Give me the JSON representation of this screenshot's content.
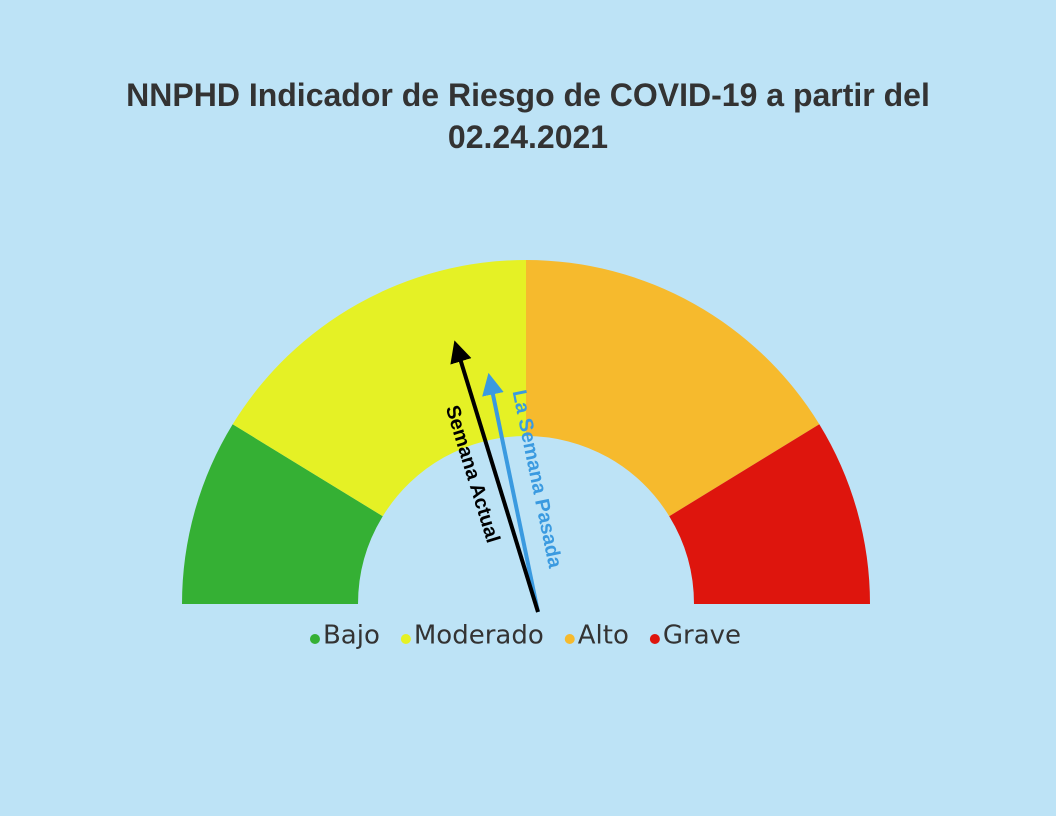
{
  "chart_data": {
    "type": "gauge",
    "title_line1": "NNPHD Indicador de Riesgo de COVID-19 a partir del",
    "title_line2": "02.24.2021",
    "bands": [
      {
        "label": "Bajo",
        "from": 0,
        "to": 0.175,
        "color": "#35b034"
      },
      {
        "label": "Moderado",
        "from": 0.175,
        "to": 0.5,
        "color": "#e5f125"
      },
      {
        "label": "Alto",
        "from": 0.5,
        "to": 0.825,
        "color": "#f6ba2d"
      },
      {
        "label": "Grave",
        "from": 0.825,
        "to": 1.0,
        "color": "#de150d"
      }
    ],
    "needles": [
      {
        "label": "La Semana Pasada",
        "value": 0.435,
        "color": "#3a9ae0"
      },
      {
        "label": "Semana Actual",
        "value": 0.405,
        "color": "#000000"
      }
    ],
    "legend_placement": "bottom"
  }
}
